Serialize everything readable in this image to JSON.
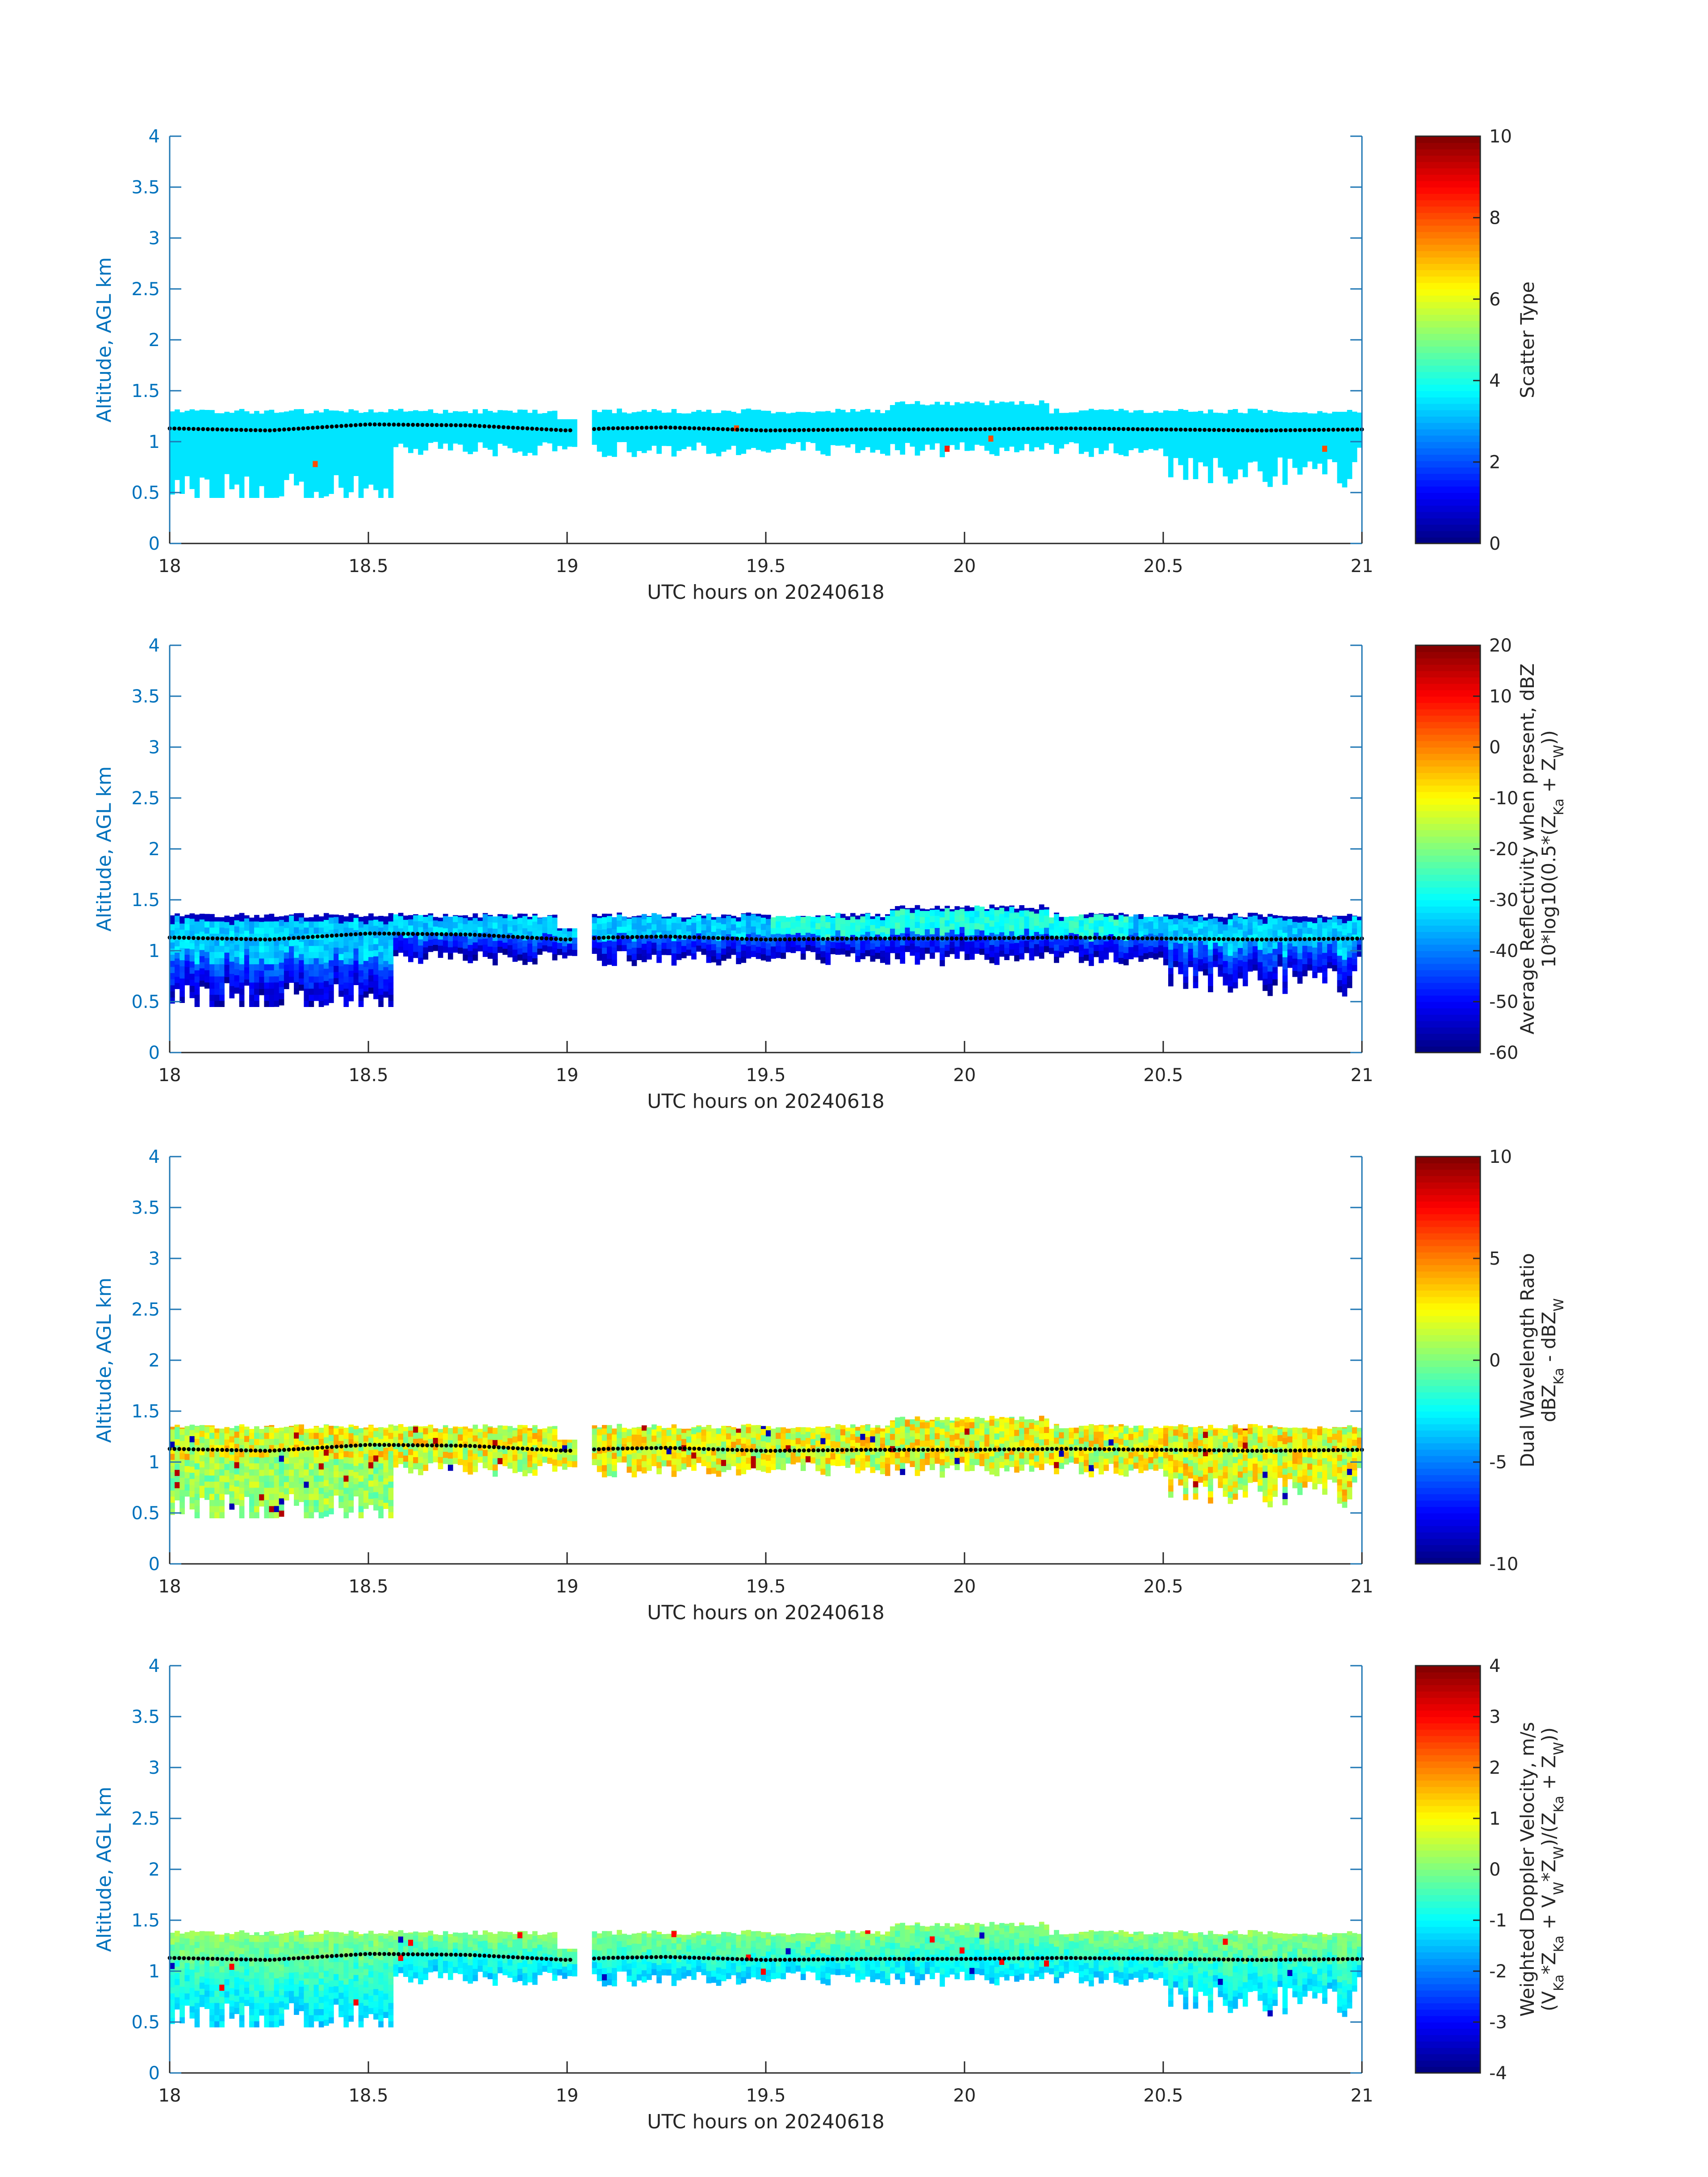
{
  "chart_data": [
    {
      "type": "heatmap",
      "xlabel": "UTC hours on 20240618",
      "ylabel": "Altitude, AGL km",
      "xlim": [
        18,
        21
      ],
      "ylim": [
        0,
        4
      ],
      "xticks": [
        "18",
        "18.5",
        "19",
        "19.5",
        "20",
        "20.5",
        "21"
      ],
      "yticks": [
        "0",
        "0.5",
        "1",
        "1.5",
        "2",
        "2.5",
        "3",
        "3.5",
        "4"
      ],
      "colorbar": {
        "label_lines": [
          "Scatter Type"
        ],
        "range": [
          0,
          10
        ],
        "ticks": [
          "0",
          "2",
          "4",
          "6",
          "8",
          "10"
        ],
        "colormap": "jet"
      },
      "field": {
        "value": 3.5,
        "cloud_top_km": 1.3,
        "cloud_base_min_km": 0.45,
        "gap_hours": [
          19.02,
          19.06
        ],
        "outliers": [
          {
            "x": 18.36,
            "y": 0.75,
            "value": 8
          },
          {
            "x": 19.42,
            "y": 1.1,
            "value": 8
          },
          {
            "x": 19.95,
            "y": 0.9,
            "value": 8.5
          },
          {
            "x": 20.06,
            "y": 1.0,
            "value": 8
          },
          {
            "x": 20.9,
            "y": 0.9,
            "value": 8
          }
        ]
      },
      "overlay_series": {
        "x": [
          18.0,
          18.25,
          18.5,
          18.75,
          19.0,
          19.1,
          19.25,
          19.5,
          19.75,
          20.0,
          20.25,
          20.5,
          20.75,
          21.0
        ],
        "y": [
          1.13,
          1.11,
          1.17,
          1.16,
          1.11,
          1.13,
          1.14,
          1.11,
          1.12,
          1.12,
          1.13,
          1.12,
          1.11,
          1.12
        ]
      }
    },
    {
      "type": "heatmap",
      "xlabel": "UTC hours on 20240618",
      "ylabel": "Altitude, AGL km",
      "xlim": [
        18,
        21
      ],
      "ylim": [
        0,
        4
      ],
      "xticks": [
        "18",
        "18.5",
        "19",
        "19.5",
        "20",
        "20.5",
        "21"
      ],
      "yticks": [
        "0",
        "0.5",
        "1",
        "1.5",
        "2",
        "2.5",
        "3",
        "3.5",
        "4"
      ],
      "colorbar": {
        "label_lines": [
          "Average Reflectivity when present, dBZ",
          "10*log10(0.5*(Z",
          "Ka",
          " + Z",
          "W",
          "))"
        ],
        "range": [
          -60,
          20
        ],
        "ticks": [
          "-60",
          "-50",
          "-40",
          "-30",
          "-20",
          "-10",
          "0",
          "10",
          "20"
        ],
        "colormap": "jet"
      },
      "field": {
        "top_value": -55,
        "core_value": -32,
        "base_value": -55,
        "cloud_top_km": 1.35,
        "cloud_base_min_km": 0.45,
        "gap_hours": [
          19.02,
          19.06
        ]
      },
      "overlay_series": {
        "x": [
          18.0,
          18.25,
          18.5,
          18.75,
          19.0,
          19.1,
          19.25,
          19.5,
          19.75,
          20.0,
          20.25,
          20.5,
          20.75,
          21.0
        ],
        "y": [
          1.13,
          1.11,
          1.17,
          1.16,
          1.11,
          1.13,
          1.14,
          1.11,
          1.12,
          1.12,
          1.13,
          1.12,
          1.11,
          1.12
        ]
      }
    },
    {
      "type": "heatmap",
      "xlabel": "UTC hours on 20240618",
      "ylabel": "Altitude, AGL km",
      "xlim": [
        18,
        21
      ],
      "ylim": [
        0,
        4
      ],
      "xticks": [
        "18",
        "18.5",
        "19",
        "19.5",
        "20",
        "20.5",
        "21"
      ],
      "yticks": [
        "0",
        "0.5",
        "1",
        "1.5",
        "2",
        "2.5",
        "3",
        "3.5",
        "4"
      ],
      "colorbar": {
        "label_lines": [
          "Dual Wavelength Ratio",
          "dBZ",
          "Ka",
          " - dBZ",
          "W"
        ],
        "range": [
          -10,
          10
        ],
        "ticks": [
          "-10",
          "-5",
          "0",
          "5",
          "10"
        ],
        "colormap": "jet"
      },
      "field": {
        "typical_value": 2,
        "spread": 2.5,
        "cloud_top_km": 1.35,
        "cloud_base_min_km": 0.45,
        "gap_hours": [
          19.02,
          19.06
        ]
      },
      "overlay_series": {
        "x": [
          18.0,
          18.25,
          18.5,
          18.75,
          19.0,
          19.1,
          19.25,
          19.5,
          19.75,
          20.0,
          20.25,
          20.5,
          20.75,
          21.0
        ],
        "y": [
          1.13,
          1.11,
          1.17,
          1.16,
          1.11,
          1.13,
          1.14,
          1.11,
          1.12,
          1.12,
          1.13,
          1.12,
          1.11,
          1.12
        ]
      }
    },
    {
      "type": "heatmap",
      "xlabel": "UTC hours on 20240618",
      "ylabel": "Altitude, AGL km",
      "xlim": [
        18,
        21
      ],
      "ylim": [
        0,
        4
      ],
      "xticks": [
        "18",
        "18.5",
        "19",
        "19.5",
        "20",
        "20.5",
        "21"
      ],
      "yticks": [
        "0",
        "0.5",
        "1",
        "1.5",
        "2",
        "2.5",
        "3",
        "3.5",
        "4"
      ],
      "colorbar": {
        "label_lines": [
          "Weighted Doppler Velocity, m/s",
          "(V",
          "Ka",
          "*Z",
          "Ka",
          " + V",
          "W",
          "*Z",
          "W",
          ")/(Z",
          "Ka",
          " + Z",
          "W",
          "))"
        ],
        "range": [
          -4,
          4
        ],
        "ticks": [
          "-4",
          "-3",
          "-2",
          "-1",
          "0",
          "1",
          "2",
          "3",
          "4"
        ],
        "colormap": "jet"
      },
      "field": {
        "top_value": 0.2,
        "base_value": -1.3,
        "cloud_top_km": 1.38,
        "cloud_base_min_km": 0.45,
        "gap_hours": [
          19.02,
          19.06
        ]
      },
      "overlay_series": {
        "x": [
          18.0,
          18.25,
          18.5,
          18.75,
          19.0,
          19.1,
          19.25,
          19.5,
          19.75,
          20.0,
          20.25,
          20.5,
          20.75,
          21.0
        ],
        "y": [
          1.13,
          1.11,
          1.17,
          1.16,
          1.11,
          1.13,
          1.14,
          1.11,
          1.12,
          1.12,
          1.13,
          1.12,
          1.11,
          1.12
        ]
      }
    }
  ]
}
